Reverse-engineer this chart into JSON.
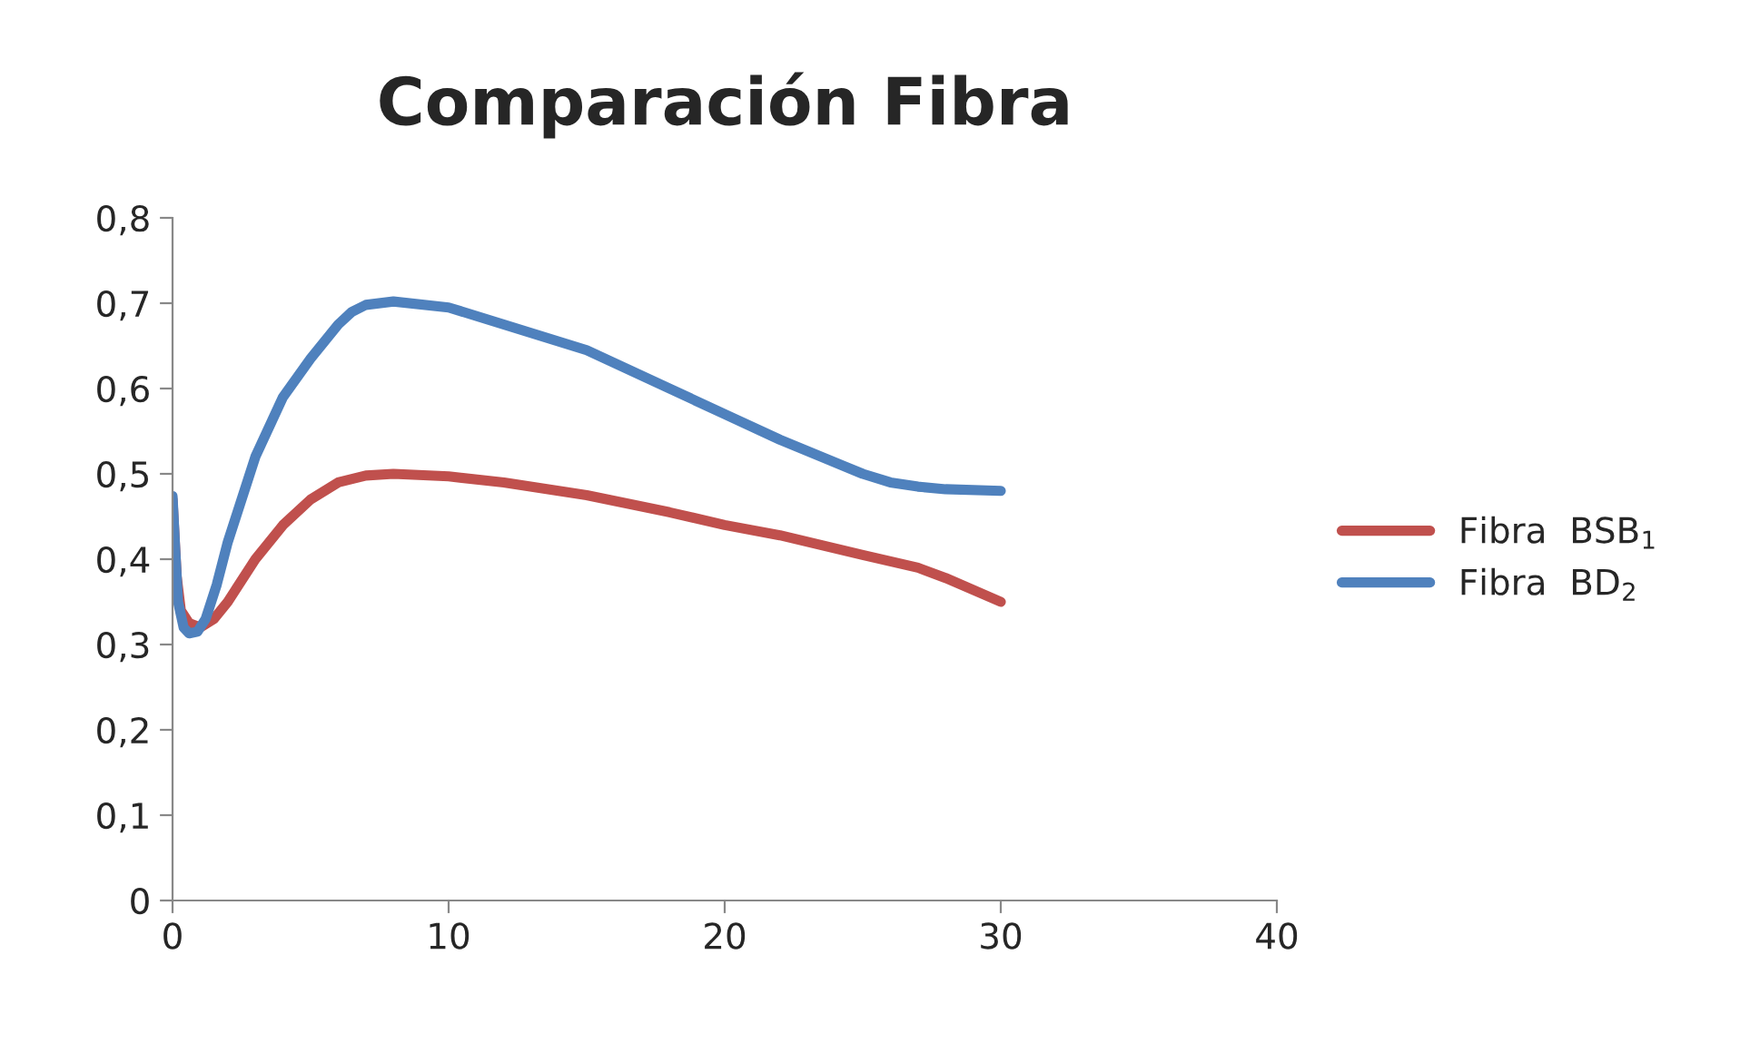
{
  "chart_data": {
    "type": "line",
    "title": "Comparación Fibra",
    "series": [
      {
        "name": "Fibra  BSB$_{1}$",
        "color": "#c0504d",
        "x": [
          0,
          0.15,
          0.3,
          0.6,
          1,
          1.5,
          2,
          3,
          4,
          5,
          6,
          7,
          8,
          10,
          12,
          15,
          18,
          20,
          22,
          25,
          27,
          28,
          30
        ],
        "values": [
          0.47,
          0.38,
          0.34,
          0.325,
          0.32,
          0.33,
          0.35,
          0.4,
          0.44,
          0.47,
          0.49,
          0.498,
          0.5,
          0.497,
          0.49,
          0.475,
          0.455,
          0.44,
          0.428,
          0.405,
          0.39,
          0.378,
          0.35
        ]
      },
      {
        "name": "Fibra  BD$_{2}$",
        "color": "#4f81bd",
        "x": [
          0,
          0.1,
          0.2,
          0.4,
          0.6,
          0.9,
          1.2,
          1.6,
          2,
          3,
          4,
          5,
          6,
          6.5,
          7,
          8,
          10,
          12,
          15,
          18,
          20,
          22,
          25,
          26,
          27,
          28,
          30
        ],
        "values": [
          0.474,
          0.41,
          0.35,
          0.32,
          0.313,
          0.315,
          0.33,
          0.37,
          0.42,
          0.52,
          0.59,
          0.635,
          0.675,
          0.69,
          0.698,
          0.702,
          0.695,
          0.675,
          0.645,
          0.6,
          0.57,
          0.54,
          0.5,
          0.49,
          0.485,
          0.482,
          0.48
        ]
      }
    ],
    "xlim": [
      0,
      40
    ],
    "xticks": [
      0,
      10,
      20,
      30,
      40
    ],
    "ylim": [
      0,
      0.8
    ],
    "yticks": [
      0,
      {
        "value": 0.1,
        "label": "0,1"
      },
      {
        "value": 0.2,
        "label": "0,2"
      },
      {
        "value": 0.3,
        "label": "0,3"
      },
      {
        "value": 0.4,
        "label": "0,4"
      },
      {
        "value": 0.5,
        "label": "0,5"
      },
      {
        "value": 0.6,
        "label": "0,6"
      },
      {
        "value": 0.7,
        "label": "0,7"
      },
      {
        "value": 0.8,
        "label": "0,8"
      }
    ],
    "grid": false,
    "legend": "right",
    "marker": "none",
    "line_style": "solid"
  }
}
